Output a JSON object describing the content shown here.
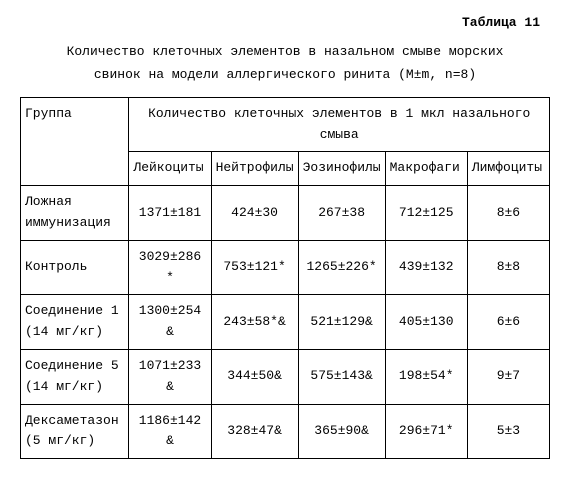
{
  "table_label": "Таблица 11",
  "caption_line1": "Количество клеточных элементов в назальном смыве морских",
  "caption_line2": "свинок на модели аллергического ринита (M±m, n=8)",
  "headers": {
    "group": "Группа",
    "span": "Количество клеточных элементов в 1 мкл назального смыва",
    "c1": "Лейкоциты",
    "c2": "Нейтрофилы",
    "c3": "Эозинофилы",
    "c4": "Макрофаги",
    "c5": "Лимфоциты"
  },
  "rows": [
    {
      "g": "Ложная иммунизация",
      "v1": "1371±181",
      "v2": "424±30",
      "v3": "267±38",
      "v4": "712±125",
      "v5": "8±6"
    },
    {
      "g": "Контроль",
      "v1": "3029±286 *",
      "v2": "753±121*",
      "v3": "1265±226*",
      "v4": "439±132",
      "v5": "8±8"
    },
    {
      "g": "Соединение 1 (14 мг/кг)",
      "v1": "1300±254 &",
      "v2": "243±58*&",
      "v3": "521±129&",
      "v4": "405±130",
      "v5": "6±6"
    },
    {
      "g": "Соединение 5 (14 мг/кг)",
      "v1": "1071±233 &",
      "v2": "344±50&",
      "v3": "575±143&",
      "v4": "198±54*",
      "v5": "9±7"
    },
    {
      "g": "Дексаметазон (5 мг/кг)",
      "v1": "1186±142 &",
      "v2": "328±47&",
      "v3": "365±90&",
      "v4": "296±71*",
      "v5": "5±3"
    }
  ]
}
